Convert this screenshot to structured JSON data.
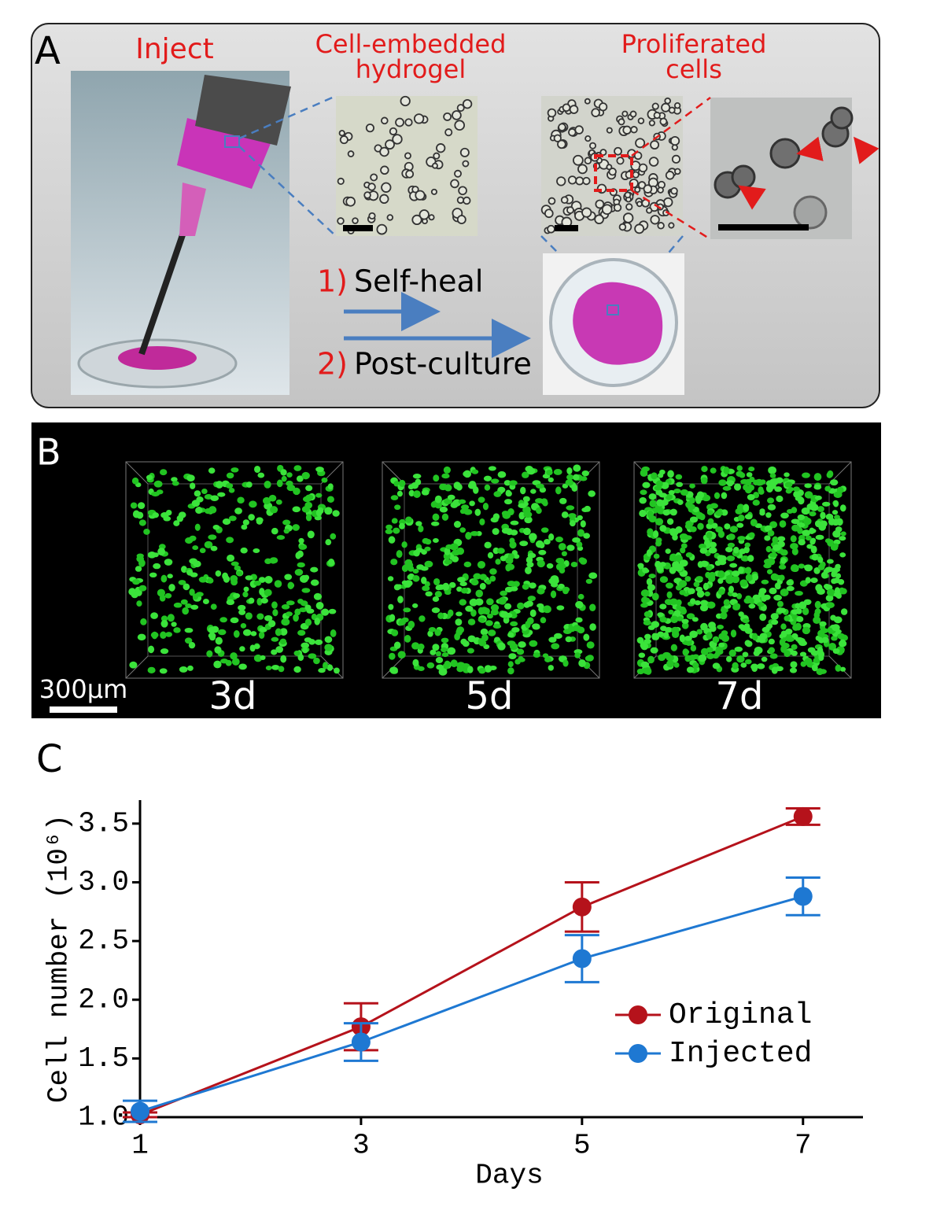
{
  "panel_a": {
    "label": "A",
    "inject": "Inject",
    "hydrogel": [
      "Cell-embedded",
      "hydrogel"
    ],
    "proliferated": [
      "Proliferated",
      "cells"
    ],
    "steps": [
      {
        "number": "1)",
        "text": "Self-heal"
      },
      {
        "number": "2)",
        "text": "Post-culture"
      }
    ]
  },
  "panel_b": {
    "label": "B",
    "scale_bar": "300µm",
    "timepoints": [
      "3d",
      "5d",
      "7d"
    ]
  },
  "panel_c": {
    "label": "C"
  },
  "chart_data": {
    "type": "line",
    "x_label": "Days",
    "y_label": "Cell number (10⁶)",
    "x": [
      1,
      3,
      5,
      7
    ],
    "xlim": [
      1,
      7.5
    ],
    "xticks": [
      1,
      3,
      5,
      7
    ],
    "ylim": [
      1.0,
      3.7
    ],
    "yticks": [
      {
        "value": 1,
        "label": "1.0"
      },
      1.5,
      {
        "value": 2,
        "label": "2.0"
      },
      2.5,
      {
        "value": 3,
        "label": "3.0"
      },
      3.5
    ],
    "legend": "right",
    "grid": false,
    "series": [
      {
        "name": "Original",
        "color": "#b5121b",
        "values": [
          1.02,
          1.77,
          2.79,
          3.56
        ],
        "errors": [
          0.02,
          0.2,
          0.21,
          0.07
        ]
      },
      {
        "name": "Injected",
        "color": "#1e78d2",
        "values": [
          1.05,
          1.64,
          2.35,
          2.88
        ],
        "errors": [
          0.09,
          0.16,
          0.2,
          0.16
        ]
      }
    ]
  }
}
